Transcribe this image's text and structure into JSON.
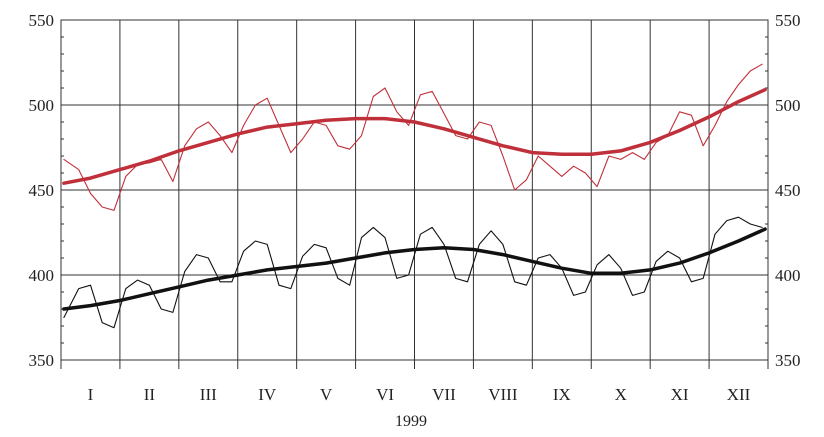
{
  "chart_data": {
    "type": "line",
    "title": "",
    "xlabel": "1999",
    "ylabel": "",
    "categories": [
      "I",
      "II",
      "III",
      "IV",
      "V",
      "VI",
      "VII",
      "VIII",
      "IX",
      "X",
      "XI",
      "XII"
    ],
    "ylim": [
      350,
      550
    ],
    "yticks": [
      350,
      400,
      450,
      500,
      550
    ],
    "grid": true,
    "legend": "none",
    "series": [
      {
        "color": "#c0303a",
        "style": "thin",
        "x": [
          0.05,
          0.3,
          0.5,
          0.7,
          0.9,
          1.1,
          1.3,
          1.5,
          1.7,
          1.9,
          2.1,
          2.3,
          2.5,
          2.7,
          2.9,
          3.1,
          3.3,
          3.5,
          3.7,
          3.9,
          4.1,
          4.3,
          4.5,
          4.7,
          4.9,
          5.1,
          5.3,
          5.5,
          5.7,
          5.9,
          6.1,
          6.3,
          6.5,
          6.7,
          6.9,
          7.1,
          7.3,
          7.5,
          7.7,
          7.9,
          8.1,
          8.3,
          8.5,
          8.7,
          8.9,
          9.1,
          9.3,
          9.5,
          9.7,
          9.9,
          10.1,
          10.3,
          10.5,
          10.7,
          10.9,
          11.1,
          11.3,
          11.5,
          11.7,
          11.9
        ],
        "values": [
          468,
          462,
          448,
          440,
          438,
          458,
          465,
          466,
          468,
          455,
          476,
          486,
          490,
          482,
          472,
          488,
          500,
          504,
          488,
          472,
          480,
          490,
          488,
          476,
          474,
          482,
          505,
          510,
          496,
          488,
          506,
          508,
          495,
          482,
          480,
          490,
          488,
          470,
          450,
          456,
          470,
          464,
          458,
          464,
          460,
          452,
          470,
          468,
          472,
          468,
          478,
          482,
          496,
          494,
          476,
          488,
          502,
          512,
          520,
          524
        ]
      },
      {
        "color": "#c0303a",
        "style": "trend",
        "x": [
          0.05,
          0.5,
          1,
          1.5,
          2,
          2.5,
          3,
          3.5,
          4,
          4.5,
          5,
          5.5,
          6,
          6.5,
          7,
          7.5,
          8,
          8.5,
          9,
          9.5,
          10,
          10.5,
          11,
          11.5,
          11.95
        ],
        "values": [
          454,
          457,
          462,
          467,
          473,
          478,
          483,
          487,
          489,
          491,
          492,
          492,
          490,
          486,
          481,
          476,
          472,
          471,
          471,
          473,
          478,
          485,
          493,
          502,
          509
        ]
      },
      {
        "color": "#111111",
        "style": "thin",
        "x": [
          0.05,
          0.3,
          0.5,
          0.7,
          0.9,
          1.1,
          1.3,
          1.5,
          1.7,
          1.9,
          2.1,
          2.3,
          2.5,
          2.7,
          2.9,
          3.1,
          3.3,
          3.5,
          3.7,
          3.9,
          4.1,
          4.3,
          4.5,
          4.7,
          4.9,
          5.1,
          5.3,
          5.5,
          5.7,
          5.9,
          6.1,
          6.3,
          6.5,
          6.7,
          6.9,
          7.1,
          7.3,
          7.5,
          7.7,
          7.9,
          8.1,
          8.3,
          8.5,
          8.7,
          8.9,
          9.1,
          9.3,
          9.5,
          9.7,
          9.9,
          10.1,
          10.3,
          10.5,
          10.7,
          10.9,
          11.1,
          11.3,
          11.5,
          11.7,
          11.9
        ],
        "values": [
          375,
          392,
          394,
          372,
          369,
          392,
          397,
          394,
          380,
          378,
          402,
          412,
          410,
          396,
          396,
          414,
          420,
          418,
          394,
          392,
          411,
          418,
          416,
          398,
          394,
          422,
          428,
          422,
          398,
          400,
          424,
          428,
          418,
          398,
          396,
          418,
          426,
          418,
          396,
          394,
          410,
          412,
          404,
          388,
          390,
          406,
          412,
          404,
          388,
          390,
          408,
          414,
          410,
          396,
          398,
          424,
          432,
          434,
          430,
          428
        ]
      },
      {
        "color": "#111111",
        "style": "trend",
        "x": [
          0.05,
          0.5,
          1,
          1.5,
          2,
          2.5,
          3,
          3.5,
          4,
          4.5,
          5,
          5.5,
          6,
          6.5,
          7,
          7.5,
          8,
          8.5,
          9,
          9.5,
          10,
          10.5,
          11,
          11.5,
          11.95
        ],
        "values": [
          380,
          382,
          385,
          389,
          393,
          397,
          400,
          403,
          405,
          407,
          410,
          413,
          415,
          416,
          415,
          412,
          408,
          404,
          401,
          401,
          403,
          407,
          413,
          420,
          427
        ]
      }
    ]
  }
}
